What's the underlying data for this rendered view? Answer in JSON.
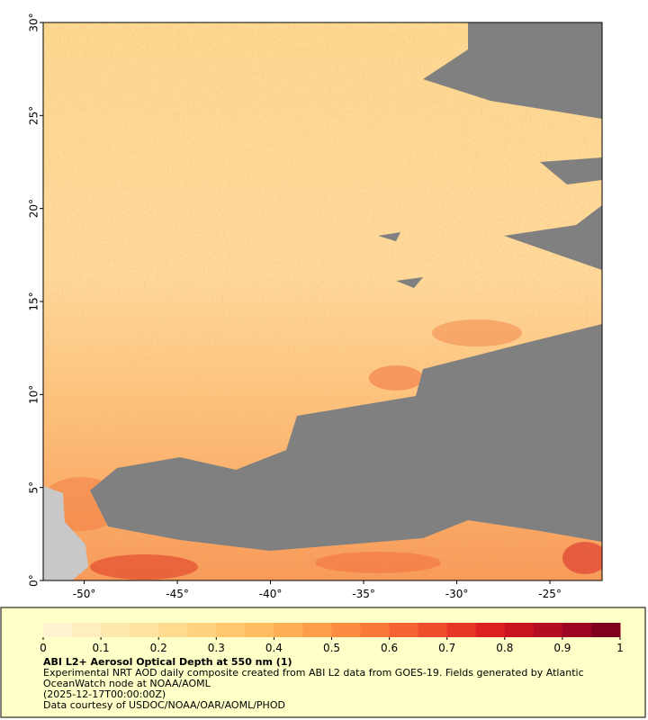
{
  "map": {
    "lon_range": [
      -52.2,
      -22.2
    ],
    "lat_range": [
      0,
      30
    ],
    "lon_ticks": [
      {
        "value": -50,
        "label": "-50°"
      },
      {
        "value": -45,
        "label": "-45°"
      },
      {
        "value": -40,
        "label": "-40°"
      },
      {
        "value": -35,
        "label": "-35°"
      },
      {
        "value": -30,
        "label": "-30°"
      },
      {
        "value": -25,
        "label": "-25°"
      }
    ],
    "lat_ticks": [
      {
        "value": 0,
        "label": "0°"
      },
      {
        "value": 5,
        "label": "5°"
      },
      {
        "value": 10,
        "label": "10°"
      },
      {
        "value": 15,
        "label": "15°"
      },
      {
        "value": 20,
        "label": "20°"
      },
      {
        "value": 25,
        "label": "25°"
      },
      {
        "value": 30,
        "label": "30°"
      }
    ]
  },
  "colorbar": {
    "range": [
      0,
      1
    ],
    "ticks": [
      0,
      0.1,
      0.2,
      0.3,
      0.4,
      0.5,
      0.6,
      0.7,
      0.8,
      0.9,
      1
    ],
    "colors": [
      "#fff4cf",
      "#ffeec0",
      "#ffe8ae",
      "#ffe29f",
      "#ffdb90",
      "#ffd27f",
      "#ffc86e",
      "#ffbc60",
      "#ffae54",
      "#fd9f4a",
      "#fc8d40",
      "#fa7838",
      "#f66332",
      "#f04d2c",
      "#e73526",
      "#dc2020",
      "#c9131f",
      "#b30d22",
      "#9c0623",
      "#800020"
    ]
  },
  "caption": {
    "title": "ABI L2+ Aerosol Optical Depth at 550 nm (1)",
    "description": "Experimental NRT AOD daily composite created from ABI L2 data from GOES-19. Fields generated by Atlantic OceanWatch node at NOAA/AOML",
    "date": "(2025-12-17T00:00:00Z)",
    "credit": "Data courtesy of USDOC/NOAA/OAR/AOML/PHOD"
  }
}
